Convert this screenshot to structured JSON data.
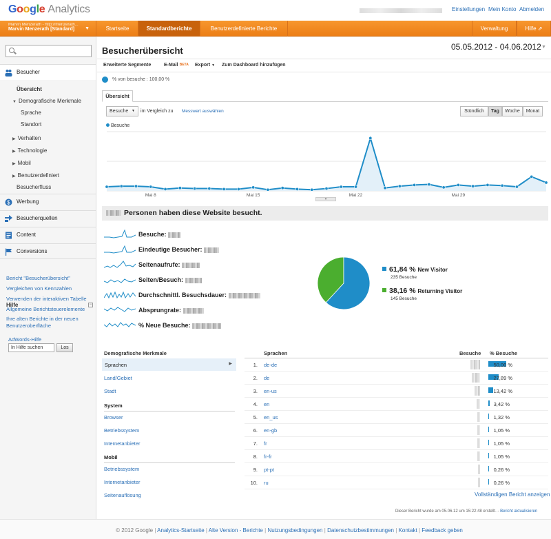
{
  "app": {
    "logo_google": "Google",
    "logo_analytics": "Analytics"
  },
  "top_links": {
    "settings": "Einstellungen",
    "account": "Mein Konto",
    "logout": "Abmelden"
  },
  "profile": {
    "line1": "Marvin Menzerath - http://menzerath...",
    "line2": "Marvin Menzerath [Standard]"
  },
  "nav": {
    "home": "Startseite",
    "standard": "Standardberichte",
    "custom": "Benutzerdefinierte Berichte",
    "admin": "Verwaltung",
    "help": "Hilfe"
  },
  "sidebar": {
    "sections": {
      "visitors": "Besucher",
      "advertising": "Werbung",
      "traffic": "Besucherquellen",
      "content": "Content",
      "conversions": "Conversions"
    },
    "visitors_items": {
      "overview": "Übersicht",
      "demographics": "Demografische Merkmale",
      "language": "Sprache",
      "location": "Standort",
      "behavior": "Verhalten",
      "technology": "Technologie",
      "mobile": "Mobil",
      "custom": "Benutzerdefiniert",
      "flow": "Besucherfluss"
    },
    "help": {
      "title": "Hilfe",
      "links": [
        "Bericht \"Besucherübersicht\"",
        "Vergleichen von Kennzahlen",
        "Verwenden der interaktiven Tabelle",
        "Allgemeine Berichtsteuerelemente",
        "Ihre alten Berichte in der neuen Benutzeroberfläche"
      ],
      "adwords": "AdWords-Hilfe",
      "search_placeholder": "In Hilfe suchen",
      "search_button": "Los"
    }
  },
  "main": {
    "title": "Besucherübersicht",
    "date_range": "05.05.2012 - 04.06.2012",
    "toolbar": {
      "segments": "Erweiterte Segmente",
      "email": "E-Mail",
      "beta": "BETA",
      "export": "Export",
      "dashboard": "Zum Dashboard hinzufügen"
    },
    "segment_label": "% von besuche : 100,00 %",
    "tab_overview": "Übersicht",
    "metric_select": "Besuche",
    "compare_label": "im Vergleich zu",
    "compare_link": "Messwert auswählen",
    "granularity": [
      "Stündlich",
      "Tag",
      "Woche",
      "Monat"
    ],
    "active_granularity": "Tag",
    "legend": "Besuche",
    "people_text": "Personen haben diese Website besucht.",
    "metrics": [
      "Besuche:",
      "Eindeutige Besucher:",
      "Seitenaufrufe:",
      "Seiten/Besuch:",
      "Durchschnittl. Besuchsdauer:",
      "Absprungrate:",
      "% Neue Besuche:"
    ]
  },
  "chart_data": {
    "type": "line",
    "x_tick_labels": [
      "Mai 8",
      "Mai 15",
      "Mai 22",
      "Mai 29"
    ],
    "x": [
      "05.05",
      "06.05",
      "07.05",
      "08.05",
      "09.05",
      "10.05",
      "11.05",
      "12.05",
      "13.05",
      "14.05",
      "15.05",
      "16.05",
      "17.05",
      "18.05",
      "19.05",
      "20.05",
      "21.05",
      "22.05",
      "23.05",
      "24.05",
      "25.05",
      "26.05",
      "27.05",
      "28.05",
      "29.05",
      "30.05",
      "31.05",
      "01.06",
      "02.06",
      "03.06",
      "04.06"
    ],
    "values": [
      7,
      8,
      8,
      7,
      3,
      5,
      4,
      4,
      3,
      3,
      6,
      2,
      5,
      3,
      2,
      4,
      7,
      7,
      89,
      5,
      8,
      10,
      11,
      6,
      10,
      8,
      10,
      9,
      7,
      24,
      14
    ],
    "grid": true
  },
  "pie_data": {
    "slices": [
      {
        "name": "New Visitor",
        "pct_label": "61,84 %",
        "value": 61.84,
        "count": "235 Besuche",
        "color": "#1f8dc8"
      },
      {
        "name": "Returning Visitor",
        "pct_label": "38,16 %",
        "value": 38.16,
        "count": "145 Besuche",
        "color": "#4bae2f"
      }
    ]
  },
  "demographics": {
    "header": "Demografische Merkmale",
    "items": {
      "languages": "Sprachen",
      "country": "Land/Gebiet",
      "city": "Stadt"
    },
    "system_header": "System",
    "system": {
      "browser": "Browser",
      "os": "Betriebssystem",
      "isp": "Internetanbieter"
    },
    "mobile_header": "Mobil",
    "mobile": {
      "os": "Betriebssystem",
      "isp": "Internetanbieter",
      "resolution": "Seitenauflösung"
    }
  },
  "languages_table": {
    "col_language": "Sprachen",
    "col_visits": "Besuche",
    "col_pct": "% Besuche",
    "rows": [
      {
        "n": "1.",
        "lang": "de-de",
        "pct": "50,00 %",
        "value": 50.0
      },
      {
        "n": "2.",
        "lang": "de",
        "pct": "27,89 %",
        "value": 27.89
      },
      {
        "n": "3.",
        "lang": "en-us",
        "pct": "13,42 %",
        "value": 13.42
      },
      {
        "n": "4.",
        "lang": "en",
        "pct": "3,42 %",
        "value": 3.42
      },
      {
        "n": "5.",
        "lang": "en_us",
        "pct": "1,32 %",
        "value": 1.32
      },
      {
        "n": "6.",
        "lang": "en-gb",
        "pct": "1,05 %",
        "value": 1.05
      },
      {
        "n": "7.",
        "lang": "fr",
        "pct": "1,05 %",
        "value": 1.05
      },
      {
        "n": "8.",
        "lang": "fr-fr",
        "pct": "1,05 %",
        "value": 1.05
      },
      {
        "n": "9.",
        "lang": "pt-pt",
        "pct": "0,26 %",
        "value": 0.26
      },
      {
        "n": "10.",
        "lang": "ru",
        "pct": "0,26 %",
        "value": 0.26
      }
    ],
    "full_report": "Vollständigen Bericht anzeigen"
  },
  "created": {
    "text": "Dieser Bericht wurde am 05.06.12 um 15:22:48 erstellt. -",
    "refresh": "Bericht aktualisieren"
  },
  "footer": {
    "copyright": "© 2012 Google",
    "links": [
      "Analytics-Startseite",
      "Alte Version - Berichte",
      "Nutzungsbedingungen",
      "Datenschutzbestimmungen",
      "Kontakt",
      "Feedback geben"
    ]
  }
}
